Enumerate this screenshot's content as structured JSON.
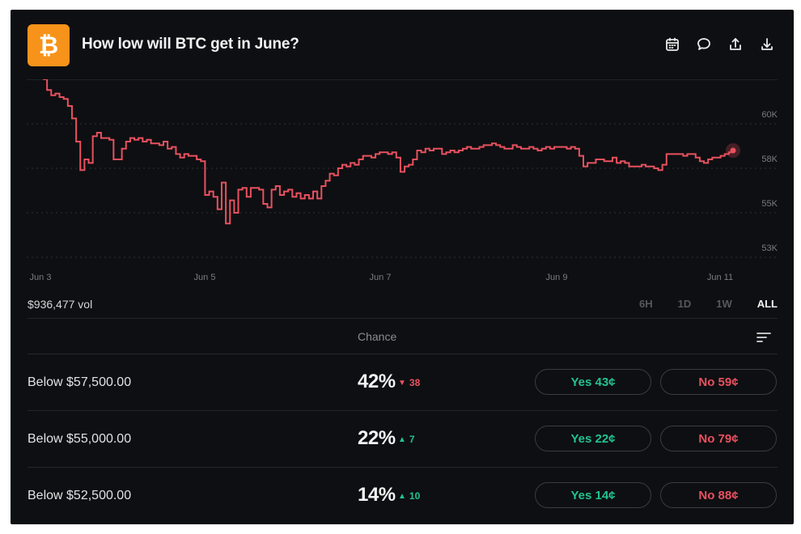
{
  "header": {
    "title": "How low will BTC get in June?",
    "logo_color": "#f7931a",
    "actions": [
      "calendar-icon",
      "comment-icon",
      "share-icon",
      "download-icon"
    ]
  },
  "chart_data": {
    "type": "line",
    "x_ticks": [
      "Jun 3",
      "Jun 5",
      "Jun 7",
      "Jun 9",
      "Jun 11"
    ],
    "y_ticks": [
      "60K",
      "58K",
      "55K",
      "53K"
    ],
    "line_color": "#e8515f",
    "grid": "horizontal-dotted",
    "series": [
      {
        "values": [
          62.5,
          61.9,
          61.6,
          61.7,
          61.5,
          61.4,
          61.0,
          60.3,
          59.0,
          57.4,
          58.0,
          57.8,
          59.3,
          59.5,
          59.2,
          59.2,
          59.1,
          58.0,
          58.0,
          58.6,
          59.0,
          59.2,
          59.1,
          59.2,
          59.0,
          59.1,
          58.9,
          58.9,
          58.8,
          59.0,
          58.6,
          58.7,
          58.3,
          58.1,
          58.3,
          58.2,
          58.2,
          58.0,
          57.9,
          56.0,
          56.2,
          55.9,
          55.2,
          56.7,
          54.4,
          55.7,
          55.0,
          56.3,
          56.4,
          55.9,
          56.4,
          56.4,
          56.3,
          55.5,
          55.3,
          56.3,
          56.5,
          56.0,
          56.2,
          56.3,
          55.9,
          56.1,
          55.8,
          56.0,
          55.8,
          56.2,
          55.8,
          56.5,
          56.8,
          57.2,
          57.1,
          57.5,
          57.7,
          57.6,
          57.8,
          57.7,
          58.0,
          58.2,
          58.2,
          58.1,
          58.3,
          58.4,
          58.4,
          58.3,
          58.4,
          58.1,
          57.3,
          57.6,
          57.7,
          58.0,
          58.5,
          58.4,
          58.6,
          58.5,
          58.6,
          58.6,
          58.3,
          58.4,
          58.5,
          58.4,
          58.5,
          58.6,
          58.7,
          58.6,
          58.6,
          58.7,
          58.8,
          58.8,
          58.9,
          58.8,
          58.7,
          58.6,
          58.6,
          58.8,
          58.7,
          58.6,
          58.6,
          58.7,
          58.6,
          58.5,
          58.6,
          58.7,
          58.6,
          58.7,
          58.7,
          58.7,
          58.6,
          58.7,
          58.6,
          58.2,
          57.6,
          57.8,
          57.8,
          58.0,
          58.0,
          57.9,
          57.9,
          58.1,
          57.8,
          57.9,
          57.8,
          57.6,
          57.6,
          57.6,
          57.7,
          57.6,
          57.6,
          57.5,
          57.4,
          57.7,
          58.3,
          58.3,
          58.3,
          58.3,
          58.2,
          58.3,
          58.3,
          58.1,
          57.9,
          57.8,
          58.0,
          58.1,
          58.1,
          58.2,
          58.3,
          58.4,
          58.5
        ]
      }
    ],
    "ylim": [
      52.5,
      62.5
    ]
  },
  "volume": "$936,477 vol",
  "ranges": [
    {
      "label": "6H",
      "active": false
    },
    {
      "label": "1D",
      "active": false
    },
    {
      "label": "1W",
      "active": false
    },
    {
      "label": "ALL",
      "active": true
    }
  ],
  "table": {
    "chance_header": "Chance",
    "rows": [
      {
        "label": "Below $57,500.00",
        "chance": "42%",
        "delta_dir": "down",
        "delta": "38",
        "yes": "Yes 43¢",
        "no": "No 59¢"
      },
      {
        "label": "Below $55,000.00",
        "chance": "22%",
        "delta_dir": "up",
        "delta": "7",
        "yes": "Yes 22¢",
        "no": "No 79¢"
      },
      {
        "label": "Below $52,500.00",
        "chance": "14%",
        "delta_dir": "up",
        "delta": "10",
        "yes": "Yes 14¢",
        "no": "No 88¢"
      }
    ]
  },
  "colors": {
    "up": "#22c38e",
    "down": "#e8515f",
    "yes": "#22c38e",
    "no": "#e8515f"
  }
}
